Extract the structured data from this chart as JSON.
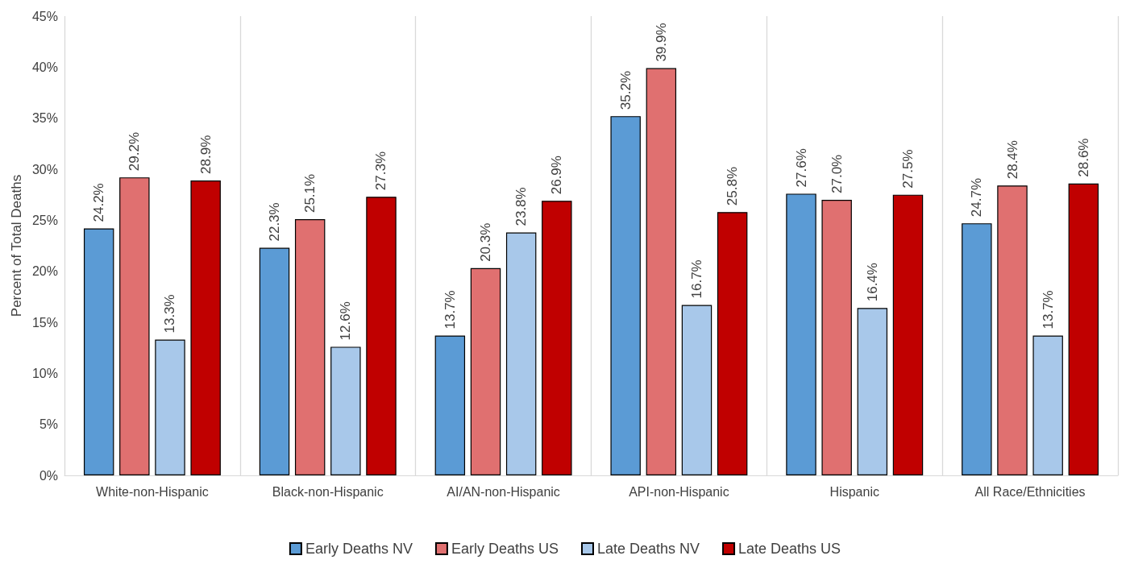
{
  "chart_data": {
    "type": "bar",
    "ylabel": "Percent of Total Deaths",
    "categories": [
      "White-non-Hispanic",
      "Black-non-Hispanic",
      "AI/AN-non-Hispanic",
      "API-non-Hispanic",
      "Hispanic",
      "All Race/Ethnicities"
    ],
    "series": [
      {
        "name": "Early Deaths NV",
        "color": "#5b9bd5",
        "values": [
          24.2,
          22.3,
          13.7,
          35.2,
          27.6,
          24.7
        ],
        "value_labels": [
          "24.2%",
          "22.3%",
          "13.7%",
          "35.2%",
          "27.6%",
          "24.7%"
        ]
      },
      {
        "name": "Early Deaths US",
        "color": "#e07070",
        "values": [
          29.2,
          25.1,
          20.3,
          39.9,
          27.0,
          28.4
        ],
        "value_labels": [
          "29.2%",
          "25.1%",
          "20.3%",
          "39.9%",
          "27.0%",
          "28.4%"
        ]
      },
      {
        "name": "Late Deaths NV",
        "color": "#a8c8ea",
        "values": [
          13.3,
          12.6,
          23.8,
          16.7,
          16.4,
          13.7
        ],
        "value_labels": [
          "13.3%",
          "12.6%",
          "23.8%",
          "16.7%",
          "16.4%",
          "13.7%"
        ]
      },
      {
        "name": "Late Deaths US",
        "color": "#c00000",
        "values": [
          28.9,
          27.3,
          26.9,
          25.8,
          27.5,
          28.6
        ],
        "value_labels": [
          "28.9%",
          "27.3%",
          "26.9%",
          "25.8%",
          "27.5%",
          "28.6%"
        ]
      }
    ],
    "ylim": [
      0,
      45
    ],
    "yticks": [
      {
        "value": 0,
        "label": "0%"
      },
      {
        "value": 5,
        "label": "5%"
      },
      {
        "value": 10,
        "label": "10%"
      },
      {
        "value": 15,
        "label": "15%"
      },
      {
        "value": 20,
        "label": "20%"
      },
      {
        "value": 25,
        "label": "25%"
      },
      {
        "value": 30,
        "label": "30%"
      },
      {
        "value": 35,
        "label": "35%"
      },
      {
        "value": 40,
        "label": "40%"
      },
      {
        "value": 45,
        "label": "45%"
      }
    ],
    "grid": "x",
    "legend": "bottom"
  }
}
